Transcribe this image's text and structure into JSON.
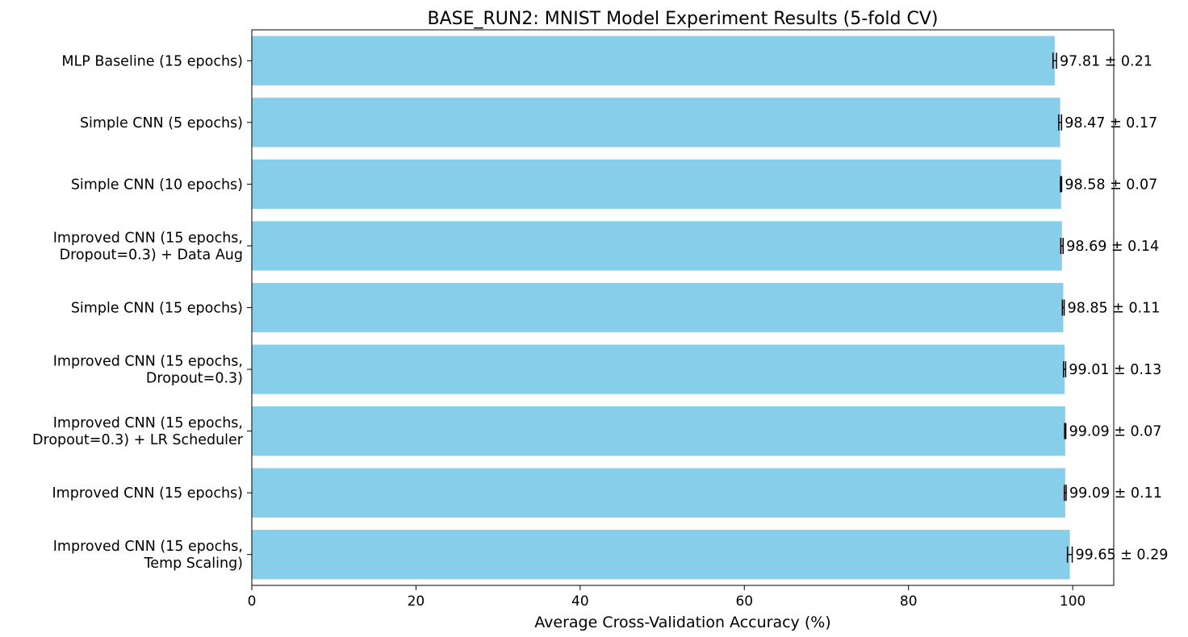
{
  "chart_data": {
    "type": "bar",
    "orientation": "horizontal",
    "title": "BASE_RUN2: MNIST Model Experiment Results (5-fold CV)",
    "xlabel": "Average Cross-Validation Accuracy (%)",
    "ylabel": "",
    "xlim": [
      0,
      105
    ],
    "x_ticks": [
      0,
      20,
      40,
      60,
      80,
      100
    ],
    "x_tick_labels": [
      "0",
      "20",
      "40",
      "60",
      "80",
      "100"
    ],
    "grid": false,
    "bar_color": "#87ceeb",
    "errorbar_color": "#000000",
    "categories": [
      [
        "MLP Baseline (15 epochs)"
      ],
      [
        "Simple CNN (5 epochs)"
      ],
      [
        "Simple CNN (10 epochs)"
      ],
      [
        "Improved CNN (15 epochs,",
        "Dropout=0.3) + Data Aug"
      ],
      [
        "Simple CNN (15 epochs)"
      ],
      [
        "Improved CNN (15 epochs,",
        "Dropout=0.3)"
      ],
      [
        "Improved CNN (15 epochs,",
        "Dropout=0.3) + LR Scheduler"
      ],
      [
        "Improved CNN (15 epochs)"
      ],
      [
        "Improved CNN (15 epochs,",
        "Temp Scaling)"
      ]
    ],
    "values": [
      97.81,
      98.47,
      98.58,
      98.69,
      98.85,
      99.01,
      99.09,
      99.09,
      99.65
    ],
    "errors": [
      0.21,
      0.17,
      0.07,
      0.14,
      0.11,
      0.13,
      0.07,
      0.11,
      0.29
    ],
    "data_labels": [
      "97.81 ± 0.21",
      "98.47 ± 0.17",
      "98.58 ± 0.07",
      "98.69 ± 0.14",
      "98.85 ± 0.11",
      "99.01 ± 0.13",
      "99.09 ± 0.07",
      "99.09 ± 0.11",
      "99.65 ± 0.29"
    ]
  }
}
